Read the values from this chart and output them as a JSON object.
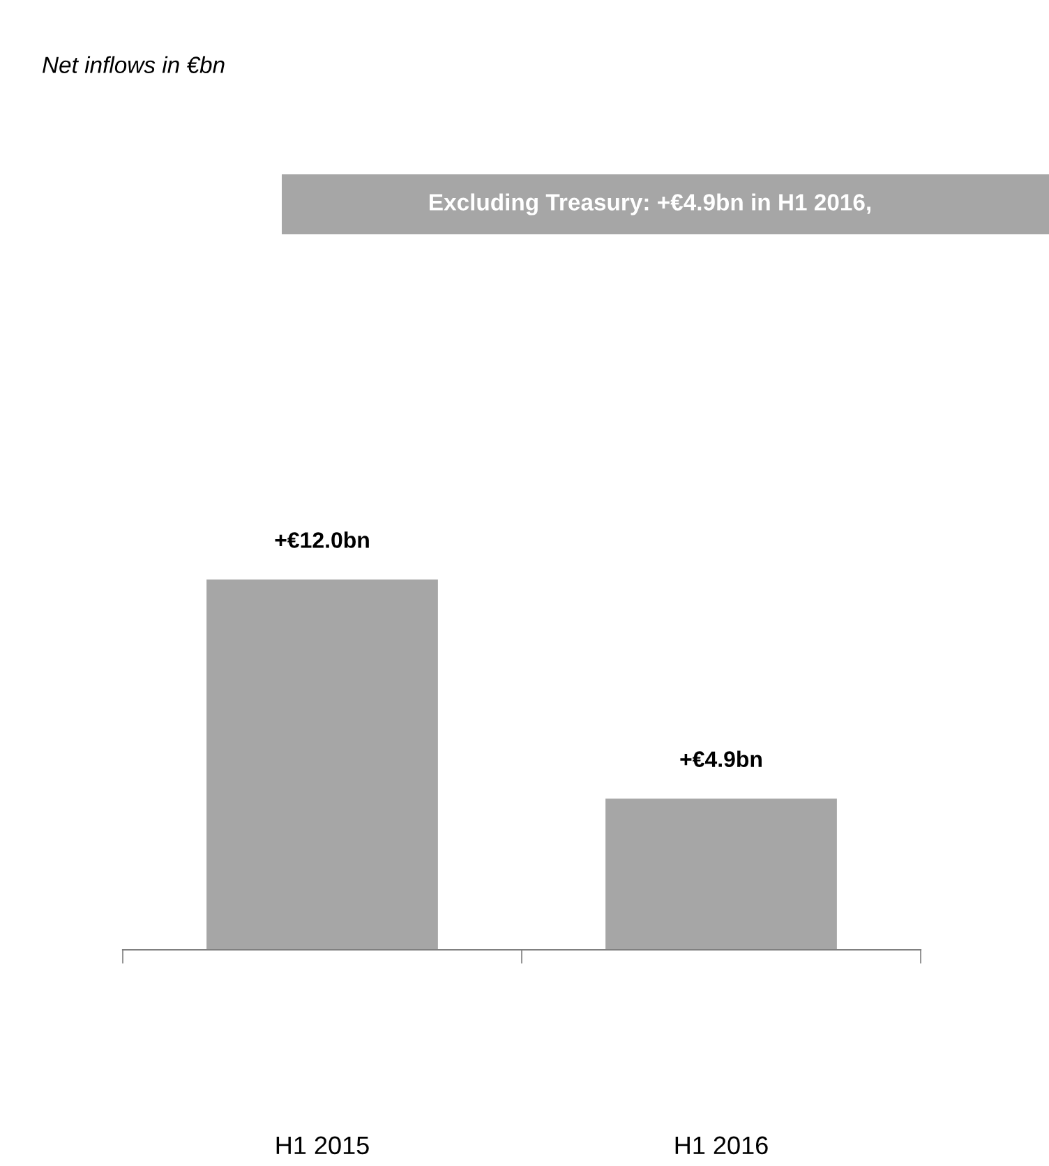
{
  "chart_data": {
    "type": "bar",
    "title": "Net inflows in €bn",
    "annotations": [
      "Excluding Treasury: +€4.9bn in H1 2016,"
    ],
    "categories": [
      "H1 2015",
      "H1 2016"
    ],
    "values": [
      12.0,
      4.9
    ],
    "value_labels": [
      "+€12.0bn",
      "+€4.9bn"
    ],
    "color": "#a6a6a6",
    "grid": false,
    "legend": false
  }
}
